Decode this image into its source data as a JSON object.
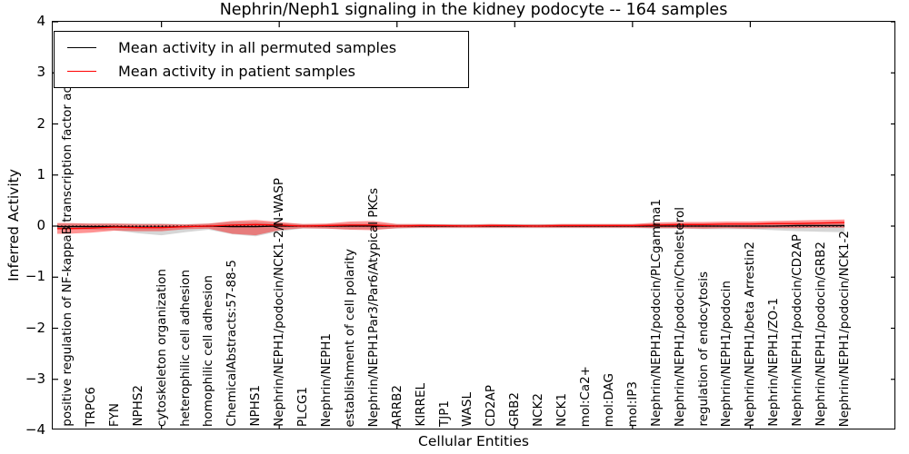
{
  "figure": {
    "title": "Nephrin/Neph1 signaling in the kidney podocyte -- 164 samples"
  },
  "legend": {
    "items": [
      {
        "label": "Mean activity in all permuted samples",
        "color": "#000000"
      },
      {
        "label": "Mean activity in patient samples",
        "color": "#ff0000"
      }
    ]
  },
  "chart_data": {
    "type": "line",
    "title": "Nephrin/Neph1 signaling in the kidney podocyte -- 164 samples",
    "xlabel": "Cellular Entities",
    "ylabel": "Inferred Activity",
    "ylim": [
      -4,
      4
    ],
    "grid": false,
    "legend_position": "upper left",
    "y_ticks": [
      "4",
      "3",
      "2",
      "1",
      "0",
      "−1",
      "−2",
      "−3",
      "−4"
    ],
    "y_tick_values": [
      4,
      3,
      2,
      1,
      0,
      -1,
      -2,
      -3,
      -4
    ],
    "x_major_tick_indices": [
      5,
      10,
      15,
      20,
      25,
      30
    ],
    "categories": [
      "positive regulation of NF-kappaB transcription factor activity",
      "TRPC6",
      "FYN",
      "NPHS2",
      "cytoskeleton organization",
      "heterophilic cell adhesion",
      "homophilic cell adhesion",
      "ChemicalAbstracts:57-88-5",
      "NPHS1",
      "Nephrin/NEPH1/podocin/NCK1-2/N-WASP",
      "PLCG1",
      "Nephrin/NEPH1",
      "establishment of cell polarity",
      "Nephrin/NEPH1Par3/Par6/Atypical PKCs",
      "ARRB2",
      "KIRREL",
      "TJP1",
      "WASL",
      "CD2AP",
      "GRB2",
      "NCK2",
      "NCK1",
      "mol:Ca2+",
      "mol:DAG",
      "mol:IP3",
      "Nephrin/NEPH1/podocin/PLCgamma1",
      "Nephrin/NEPH1/podocin/Cholesterol",
      "regulation of endocytosis",
      "Nephrin/NEPH1/podocin",
      "Nephrin/NEPH1/beta Arrestin2",
      "Nephrin/NEPH1/ZO-1",
      "Nephrin/NEPH1/podocin/CD2AP",
      "Nephrin/NEPH1/podocin/GRB2",
      "Nephrin/NEPH1/podocin/NCK1-2"
    ],
    "series": [
      {
        "name": "Mean activity in all permuted samples",
        "color": "#000000",
        "values": [
          -0.01,
          -0.01,
          -0.01,
          -0.02,
          -0.02,
          -0.01,
          0.0,
          -0.01,
          -0.01,
          0.0,
          0.0,
          0.0,
          0.0,
          0.0,
          0.0,
          0.0,
          0.0,
          0.0,
          0.0,
          0.0,
          0.0,
          0.0,
          0.0,
          0.0,
          0.0,
          0.0,
          0.0,
          0.0,
          0.0,
          0.0,
          0.0,
          0.01,
          0.01,
          0.01
        ],
        "band_upper": [
          0.05,
          0.05,
          0.05,
          0.05,
          0.05,
          0.04,
          0.05,
          0.08,
          0.08,
          0.06,
          0.04,
          0.04,
          0.05,
          0.05,
          0.04,
          0.04,
          0.04,
          0.04,
          0.04,
          0.04,
          0.04,
          0.04,
          0.04,
          0.04,
          0.04,
          0.05,
          0.05,
          0.05,
          0.05,
          0.05,
          0.05,
          0.05,
          0.05,
          0.05
        ],
        "band_lower": [
          -0.06,
          -0.07,
          -0.08,
          -0.14,
          -0.18,
          -0.12,
          -0.07,
          -0.16,
          -0.2,
          -0.1,
          -0.05,
          -0.05,
          -0.06,
          -0.06,
          -0.05,
          -0.04,
          -0.04,
          -0.04,
          -0.04,
          -0.04,
          -0.04,
          -0.04,
          -0.04,
          -0.04,
          -0.04,
          -0.05,
          -0.05,
          -0.06,
          -0.06,
          -0.06,
          -0.08,
          -0.1,
          -0.11,
          -0.12
        ],
        "band_color": "#999999"
      },
      {
        "name": "Mean activity in patient samples",
        "color": "#ff0000",
        "values": [
          -0.05,
          -0.04,
          -0.02,
          -0.03,
          -0.03,
          -0.01,
          0.0,
          0.02,
          0.03,
          0.02,
          0.0,
          0.01,
          0.02,
          0.02,
          0.0,
          0.01,
          0.01,
          0.0,
          0.01,
          0.01,
          0.0,
          0.01,
          0.01,
          0.01,
          0.01,
          0.02,
          0.03,
          0.03,
          0.04,
          0.04,
          0.05,
          0.05,
          0.06,
          0.07
        ],
        "band_upper": [
          0.06,
          0.05,
          0.05,
          0.04,
          0.04,
          0.03,
          0.05,
          0.1,
          0.12,
          0.08,
          0.04,
          0.05,
          0.09,
          0.1,
          0.04,
          0.04,
          0.03,
          0.03,
          0.04,
          0.03,
          0.03,
          0.04,
          0.04,
          0.04,
          0.04,
          0.07,
          0.08,
          0.08,
          0.09,
          0.09,
          0.1,
          0.11,
          0.12,
          0.13
        ],
        "band_lower": [
          -0.15,
          -0.13,
          -0.09,
          -0.1,
          -0.1,
          -0.06,
          -0.05,
          -0.15,
          -0.18,
          -0.08,
          -0.04,
          -0.05,
          -0.07,
          -0.08,
          -0.04,
          -0.03,
          -0.03,
          -0.03,
          -0.03,
          -0.03,
          -0.03,
          -0.03,
          -0.03,
          -0.03,
          -0.03,
          -0.04,
          -0.04,
          -0.05,
          -0.04,
          -0.05,
          -0.04,
          -0.04,
          -0.03,
          -0.03
        ],
        "band_color": "#ff0000"
      }
    ],
    "zero_line": {
      "value": 0,
      "style": "dotted",
      "color": "#000000"
    }
  }
}
